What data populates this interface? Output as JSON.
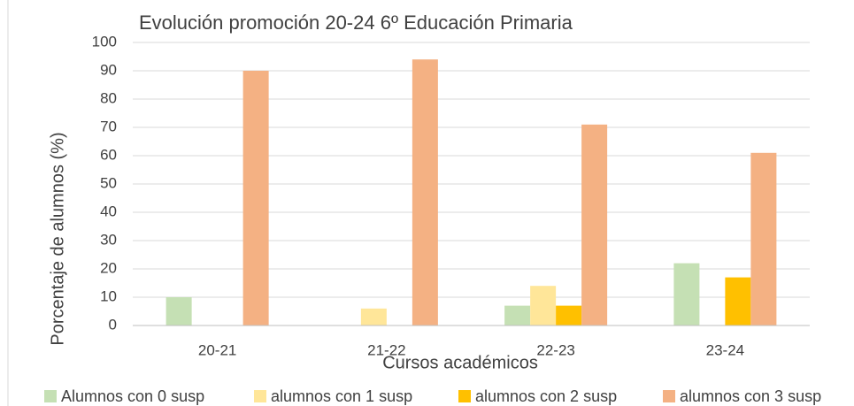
{
  "chart_data": {
    "type": "bar",
    "title": "Evolución promoción 20-24 6º Educación Primaria",
    "x_label": "Cursos académicos",
    "y_label": "Porcentaje de alumnos (%)",
    "categories": [
      "20-21",
      "21-22",
      "22-23",
      "23-24"
    ],
    "series": [
      {
        "name": "Alumnos con 0 susp",
        "color": "#c5e0b4",
        "values": [
          10,
          0,
          7,
          22
        ]
      },
      {
        "name": "alumnos con 1 susp",
        "color": "#ffe699",
        "values": [
          0,
          6,
          14,
          0
        ]
      },
      {
        "name": "alumnos con 2 susp",
        "color": "#ffc000",
        "values": [
          0,
          0,
          7,
          17
        ]
      },
      {
        "name": "alumnos con 3 susp",
        "color": "#f4b183",
        "values": [
          90,
          94,
          71,
          61
        ]
      }
    ],
    "ylim": [
      0,
      100
    ],
    "yticks": [
      0,
      10,
      20,
      30,
      40,
      50,
      60,
      70,
      80,
      90,
      100
    ],
    "grid": true,
    "legend": "bottom"
  }
}
